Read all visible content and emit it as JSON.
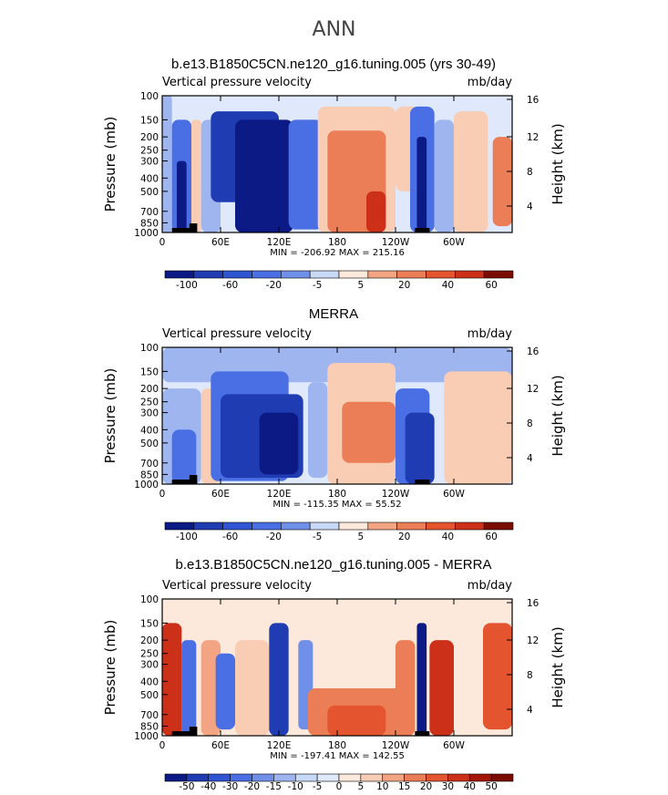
{
  "title": "ANN",
  "colors": {
    "neg": [
      "#0c1a86",
      "#1f3cb3",
      "#2f55d3",
      "#4a6ee4",
      "#6f8fe9",
      "#9fb5f0",
      "#c8d8f7",
      "#dfe9fb"
    ],
    "pos": [
      "#fde9dc",
      "#f8cdb4",
      "#f3a583",
      "#ec7e57",
      "#e4542f",
      "#cc3019",
      "#a41709",
      "#7a0c04"
    ]
  },
  "chart_data": [
    {
      "type": "heatmap",
      "title": "b.e13.B1850C5CN.ne120_g16.tuning.005 (yrs 30-49)",
      "field_label": "Vertical pressure velocity",
      "units": "mb/day",
      "ylabel": "Pressure (mb)",
      "ylabel_right": "Height (km)",
      "x_ticks": [
        "0",
        "60E",
        "120E",
        "180",
        "120W",
        "60W"
      ],
      "y_ticks": [
        "100",
        "150",
        "200",
        "250",
        "300",
        "400",
        "500",
        "700",
        "850",
        "1000"
      ],
      "y_right_ticks": [
        "16",
        "12",
        "8",
        "4"
      ],
      "min_max_text": "MIN = -206.92   MAX = 215.16",
      "colorbar_labels": [
        "-100",
        "-60",
        "-20",
        "-5",
        "5",
        "20",
        "40",
        "60"
      ],
      "regions": [
        {
          "lon": [
            0,
            10
          ],
          "p": [
            100,
            1000
          ],
          "value": -10
        },
        {
          "lon": [
            10,
            30
          ],
          "p": [
            150,
            1000
          ],
          "value": -25
        },
        {
          "lon": [
            15,
            25
          ],
          "p": [
            300,
            1000
          ],
          "value": -60
        },
        {
          "lon": [
            30,
            40
          ],
          "p": [
            150,
            1000
          ],
          "value": 5
        },
        {
          "lon": [
            40,
            60
          ],
          "p": [
            150,
            1000
          ],
          "value": -10
        },
        {
          "lon": [
            50,
            120
          ],
          "p": [
            130,
            600
          ],
          "value": -40
        },
        {
          "lon": [
            75,
            135
          ],
          "p": [
            150,
            1000
          ],
          "value": -60
        },
        {
          "lon": [
            95,
            130
          ],
          "p": [
            250,
            900
          ],
          "value": -90
        },
        {
          "lon": [
            130,
            165
          ],
          "p": [
            150,
            950
          ],
          "value": -20
        },
        {
          "lon": [
            160,
            240
          ],
          "p": [
            120,
            1000
          ],
          "value": 5
        },
        {
          "lon": [
            170,
            230
          ],
          "p": [
            180,
            1000
          ],
          "value": 20
        },
        {
          "lon": [
            210,
            230
          ],
          "p": [
            500,
            1000
          ],
          "value": 40
        },
        {
          "lon": [
            240,
            265
          ],
          "p": [
            120,
            500
          ],
          "value": 5
        },
        {
          "lon": [
            255,
            280
          ],
          "p": [
            120,
            1000
          ],
          "value": -30
        },
        {
          "lon": [
            262,
            272
          ],
          "p": [
            200,
            1000
          ],
          "value": -100
        },
        {
          "lon": [
            280,
            300
          ],
          "p": [
            150,
            1000
          ],
          "value": -10
        },
        {
          "lon": [
            300,
            335
          ],
          "p": [
            130,
            1000
          ],
          "value": 5
        },
        {
          "lon": [
            340,
            360
          ],
          "p": [
            200,
            900
          ],
          "value": 20
        }
      ]
    },
    {
      "type": "heatmap",
      "title": "MERRA",
      "field_label": "Vertical pressure velocity",
      "units": "mb/day",
      "ylabel": "Pressure (mb)",
      "ylabel_right": "Height (km)",
      "x_ticks": [
        "0",
        "60E",
        "120E",
        "180",
        "120W",
        "60W"
      ],
      "y_ticks": [
        "100",
        "150",
        "200",
        "250",
        "300",
        "400",
        "500",
        "700",
        "850",
        "1000"
      ],
      "y_right_ticks": [
        "16",
        "12",
        "8",
        "4"
      ],
      "min_max_text": "MIN = -115.35   MAX =  55.52",
      "colorbar_labels": [
        "-100",
        "-60",
        "-20",
        "-5",
        "5",
        "20",
        "40",
        "60"
      ],
      "regions": [
        {
          "lon": [
            0,
            360
          ],
          "p": [
            100,
            180
          ],
          "value": -5
        },
        {
          "lon": [
            0,
            40
          ],
          "p": [
            200,
            1000
          ],
          "value": -15
        },
        {
          "lon": [
            10,
            35
          ],
          "p": [
            400,
            1000
          ],
          "value": -30
        },
        {
          "lon": [
            40,
            60
          ],
          "p": [
            200,
            1000
          ],
          "value": 5
        },
        {
          "lon": [
            50,
            130
          ],
          "p": [
            150,
            950
          ],
          "value": -30
        },
        {
          "lon": [
            60,
            145
          ],
          "p": [
            220,
            900
          ],
          "value": -50
        },
        {
          "lon": [
            100,
            140
          ],
          "p": [
            300,
            850
          ],
          "value": -70
        },
        {
          "lon": [
            150,
            170
          ],
          "p": [
            180,
            900
          ],
          "value": -10
        },
        {
          "lon": [
            170,
            240
          ],
          "p": [
            130,
            1000
          ],
          "value": 5
        },
        {
          "lon": [
            185,
            240
          ],
          "p": [
            250,
            700
          ],
          "value": 20
        },
        {
          "lon": [
            240,
            275
          ],
          "p": [
            200,
            1000
          ],
          "value": -25
        },
        {
          "lon": [
            250,
            280
          ],
          "p": [
            300,
            1000
          ],
          "value": -55
        },
        {
          "lon": [
            290,
            360
          ],
          "p": [
            150,
            1000
          ],
          "value": 5
        }
      ]
    },
    {
      "type": "heatmap",
      "title": "b.e13.B1850C5CN.ne120_g16.tuning.005 - MERRA",
      "field_label": "Vertical pressure velocity",
      "units": "mb/day",
      "ylabel": "Pressure (mb)",
      "ylabel_right": "Height (km)",
      "x_ticks": [
        "0",
        "60E",
        "120E",
        "180",
        "120W",
        "60W"
      ],
      "y_ticks": [
        "100",
        "150",
        "200",
        "250",
        "300",
        "400",
        "500",
        "700",
        "850",
        "1000"
      ],
      "y_right_ticks": [
        "16",
        "12",
        "8",
        "4"
      ],
      "min_max_text": "MIN = -197.41   MAX = 142.55",
      "colorbar_labels": [
        "-50",
        "-40",
        "-30",
        "-20",
        "-15",
        "-10",
        "-5",
        "0",
        "5",
        "10",
        "15",
        "20",
        "30",
        "40",
        "50"
      ],
      "regions": [
        {
          "lon": [
            0,
            360
          ],
          "p": [
            100,
            1000
          ],
          "value": 3
        },
        {
          "lon": [
            0,
            20
          ],
          "p": [
            150,
            1000
          ],
          "value": 30
        },
        {
          "lon": [
            20,
            35
          ],
          "p": [
            200,
            1000
          ],
          "value": -20
        },
        {
          "lon": [
            40,
            60
          ],
          "p": [
            200,
            1000
          ],
          "value": 10
        },
        {
          "lon": [
            55,
            75
          ],
          "p": [
            250,
            900
          ],
          "value": -25
        },
        {
          "lon": [
            75,
            110
          ],
          "p": [
            200,
            1000
          ],
          "value": 5
        },
        {
          "lon": [
            110,
            130
          ],
          "p": [
            150,
            1000
          ],
          "value": -45
        },
        {
          "lon": [
            140,
            155
          ],
          "p": [
            200,
            900
          ],
          "value": -15
        },
        {
          "lon": [
            150,
            250
          ],
          "p": [
            450,
            1000
          ],
          "value": 15
        },
        {
          "lon": [
            170,
            230
          ],
          "p": [
            600,
            1000
          ],
          "value": 25
        },
        {
          "lon": [
            240,
            260
          ],
          "p": [
            200,
            1000
          ],
          "value": 15
        },
        {
          "lon": [
            262,
            272
          ],
          "p": [
            150,
            1000
          ],
          "value": -50
        },
        {
          "lon": [
            275,
            300
          ],
          "p": [
            200,
            1000
          ],
          "value": 30
        },
        {
          "lon": [
            330,
            360
          ],
          "p": [
            150,
            900
          ],
          "value": 25
        }
      ]
    }
  ]
}
